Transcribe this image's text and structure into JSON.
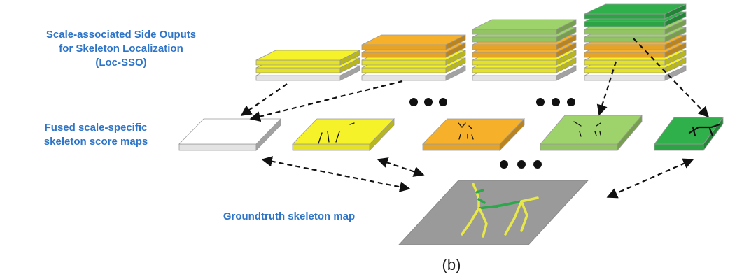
{
  "labels": {
    "sso_line1": "Scale-associated Side Ouputs",
    "sso_line2": "for Skeleton Localization",
    "sso_line3": "(Loc-SSO)",
    "fused_line1": "Fused scale-specific",
    "fused_line2": "skeleton score maps",
    "groundtruth": "Groundtruth skeleton map",
    "caption": "(b)"
  },
  "colors": {
    "label_blue": "#2e75c8",
    "white_layer": "#ffffff",
    "yellow_layer": "#f5f22a",
    "orange_layer": "#f6b02a",
    "lightgreen_layer": "#9ed36b",
    "darkgreen_layer": "#2fb04a",
    "gray_map": "#9a9a9a",
    "skeleton_yellow": "#e8e84a",
    "skeleton_green": "#2aa84a"
  },
  "layer_stacks": [
    {
      "name": "stack-1",
      "layers_bottom_to_top": [
        "white",
        "yellow",
        "yellow"
      ]
    },
    {
      "name": "stack-2",
      "layers_bottom_to_top": [
        "white",
        "yellow",
        "yellow",
        "orange",
        "orange"
      ]
    },
    {
      "name": "stack-3",
      "layers_bottom_to_top": [
        "white",
        "yellow",
        "yellow",
        "orange",
        "orange",
        "lightgreen",
        "lightgreen"
      ]
    },
    {
      "name": "stack-4",
      "layers_bottom_to_top": [
        "white",
        "yellow",
        "yellow",
        "orange",
        "orange",
        "lightgreen",
        "lightgreen",
        "darkgreen",
        "darkgreen"
      ]
    }
  ],
  "score_maps": [
    "white",
    "yellow",
    "orange",
    "lightgreen",
    "darkgreen"
  ]
}
